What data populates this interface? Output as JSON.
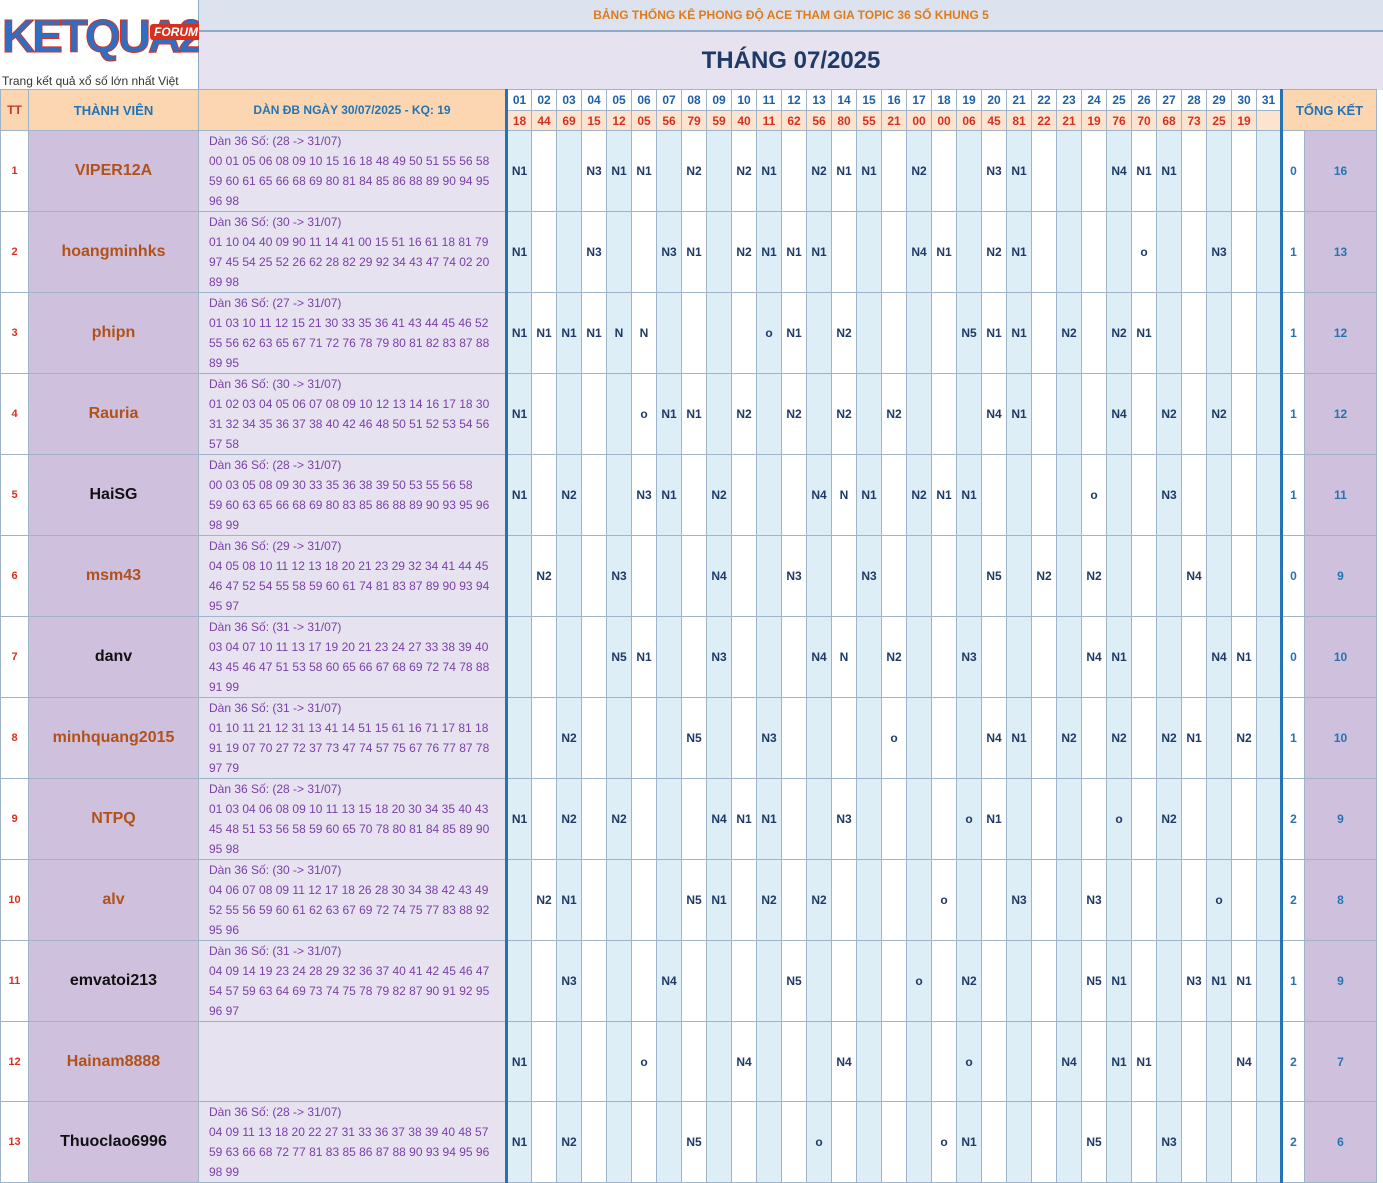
{
  "logo": {
    "text": "KETQUA2",
    "badge": "FORUM",
    "tagline": "Trang kết quả xổ số lớn nhất Việt Nam"
  },
  "title": "BẢNG THỐNG KÊ PHONG ĐỘ ACE THAM GIA TOPIC 36 SỐ KHUNG 5",
  "month": "THÁNG 07/2025",
  "headers": {
    "tt": "TT",
    "member": "THÀNH VIÊN",
    "dan": "DÀN ĐB NGÀY 30/07/2025 - KQ: 19",
    "summary": "TỔNG KẾT"
  },
  "days": [
    "01",
    "02",
    "03",
    "04",
    "05",
    "06",
    "07",
    "08",
    "09",
    "10",
    "11",
    "12",
    "13",
    "14",
    "15",
    "16",
    "17",
    "18",
    "19",
    "20",
    "21",
    "22",
    "23",
    "24",
    "25",
    "26",
    "27",
    "28",
    "29",
    "30",
    "31"
  ],
  "results": [
    "18",
    "44",
    "69",
    "15",
    "12",
    "05",
    "56",
    "79",
    "59",
    "40",
    "11",
    "62",
    "56",
    "80",
    "55",
    "21",
    "00",
    "00",
    "06",
    "45",
    "81",
    "22",
    "21",
    "19",
    "76",
    "70",
    "68",
    "73",
    "25",
    "19",
    ""
  ],
  "rows": [
    {
      "tt": "1",
      "name": "VIPER12A",
      "color": "#b0521a",
      "dan_title": "Dàn 36 Số: (28 -> 31/07)",
      "dan_lines": [
        "00 01 05 06 08 09 10 15 16 18 48 49 50 51 55 56 58",
        "59 60 61 65 66 68 69 80 81 84 85 86 88 89 90 94 95",
        "96 98"
      ],
      "cells": [
        "N1",
        "",
        "",
        "N3",
        "N1",
        "N1",
        "",
        "N2",
        "",
        "N2",
        "N1",
        "",
        "N2",
        "N1",
        "N1",
        "",
        "N2",
        "",
        "",
        "N3",
        "N1",
        "",
        "",
        "",
        "N4",
        "N1",
        "N1",
        "",
        "",
        "",
        ""
      ],
      "s1": "0",
      "s2": "16"
    },
    {
      "tt": "2",
      "name": "hoangminhks",
      "color": "#b0521a",
      "dan_title": "Dàn 36 Số: (30 -> 31/07)",
      "dan_lines": [
        "01 10 04 40 09 90 11 14 41 00 15 51 16 61 18 81 79",
        "97 45 54 25 52 26 62 28 82 29 92 34 43 47 74 02 20",
        "89 98"
      ],
      "cells": [
        "N1",
        "",
        "",
        "N3",
        "",
        "",
        "N3",
        "N1",
        "",
        "N2",
        "N1",
        "N1",
        "N1",
        "",
        "",
        "",
        "N4",
        "N1",
        "",
        "N2",
        "N1",
        "",
        "",
        "",
        "",
        "o",
        "",
        "",
        "N3",
        "",
        ""
      ],
      "s1": "1",
      "s2": "13"
    },
    {
      "tt": "3",
      "name": "phipn",
      "color": "#b0521a",
      "dan_title": "Dàn 36 Số: (27 -> 31/07)",
      "dan_lines": [
        "01 03 10 11 12 15 21 30 33 35 36 41 43 44 45 46 52",
        "55 56 62 63 65 67 71 72 76 78 79 80 81 82 83 87 88",
        "89 95"
      ],
      "cells": [
        "N1",
        "N1",
        "N1",
        "N1",
        "N",
        "N",
        "",
        "",
        "",
        "",
        "o",
        "N1",
        "",
        "N2",
        "",
        "",
        "",
        "",
        "N5",
        "N1",
        "N1",
        "",
        "N2",
        "",
        "N2",
        "N1",
        "",
        "",
        "",
        "",
        ""
      ],
      "s1": "1",
      "s2": "12"
    },
    {
      "tt": "4",
      "name": "Rauria",
      "color": "#b0521a",
      "dan_title": "Dàn 36 Số: (30 -> 31/07)",
      "dan_lines": [
        "01 02 03 04 05 06 07 08 09 10 12 13 14 16 17 18 30",
        "31 32 34 35 36 37 38 40 42 46 48 50 51 52 53 54 56",
        "57 58"
      ],
      "cells": [
        "N1",
        "",
        "",
        "",
        "",
        "o",
        "N1",
        "N1",
        "",
        "N2",
        "",
        "N2",
        "",
        "N2",
        "",
        "N2",
        "",
        "",
        "",
        "N4",
        "N1",
        "",
        "",
        "",
        "N4",
        "",
        "N2",
        "",
        "N2",
        "",
        ""
      ],
      "s1": "1",
      "s2": "12"
    },
    {
      "tt": "5",
      "name": "HaiSG",
      "color": "#111111",
      "dan_title": "Dàn 36 Số: (28 -> 31/07)",
      "dan_lines": [
        "00 03 05 08 09 30 33 35 36 38 39 50 53 55 56 58",
        "59 60 63 65 66 68 69 80 83 85 86 88 89 90 93 95 96",
        "98 99"
      ],
      "cells": [
        "N1",
        "",
        "N2",
        "",
        "",
        "N3",
        "N1",
        "",
        "N2",
        "",
        "",
        "",
        "N4",
        "N",
        "N1",
        "",
        "N2",
        "N1",
        "N1",
        "",
        "",
        "",
        "",
        "o",
        "",
        "",
        "N3",
        "",
        "",
        "",
        ""
      ],
      "s1": "1",
      "s2": "11"
    },
    {
      "tt": "6",
      "name": "msm43",
      "color": "#b0521a",
      "dan_title": "Dàn 36 Số: (29 -> 31/07)",
      "dan_lines": [
        "04 05 08 10 11 12 13 18 20 21 23 29 32 34 41 44 45",
        "46 47 52 54 55 58 59 60 61 74 81 83 87 89 90 93 94",
        "95 97"
      ],
      "cells": [
        "",
        "N2",
        "",
        "",
        "N3",
        "",
        "",
        "",
        "N4",
        "",
        "",
        "N3",
        "",
        "",
        "N3",
        "",
        "",
        "",
        "",
        "N5",
        "",
        "N2",
        "",
        "N2",
        "",
        "",
        "",
        "N4",
        "",
        "",
        ""
      ],
      "s1": "0",
      "s2": "9"
    },
    {
      "tt": "7",
      "name": "danv",
      "color": "#111111",
      "dan_title": "Dàn 36 Số: (31 -> 31/07)",
      "dan_lines": [
        "03 04 07 10 11 13 17 19 20 21 23 24 27 33 38 39 40",
        "43 45 46 47 51 53 58 60 65 66 67 68 69 72 74 78 88",
        "91 99"
      ],
      "cells": [
        "",
        "",
        "",
        "",
        "N5",
        "N1",
        "",
        "",
        "N3",
        "",
        "",
        "",
        "N4",
        "N",
        "",
        "N2",
        "",
        "",
        "N3",
        "",
        "",
        "",
        "",
        "N4",
        "N1",
        "",
        "",
        "",
        "N4",
        "N1",
        ""
      ],
      "s1": "0",
      "s2": "10"
    },
    {
      "tt": "8",
      "name": "minhquang2015",
      "color": "#b0521a",
      "dan_title": "Dàn 36 Số: (31 -> 31/07)",
      "dan_lines": [
        "01 10 11 21 12 31 13 41 14 51 15 61 16 71 17 81 18",
        "91 19 07 70 27 72 37 73 47 74 57 75 67 76 77 87 78",
        "97 79"
      ],
      "cells": [
        "",
        "",
        "N2",
        "",
        "",
        "",
        "",
        "N5",
        "",
        "",
        "N3",
        "",
        "",
        "",
        "",
        "o",
        "",
        "",
        "",
        "N4",
        "N1",
        "",
        "N2",
        "",
        "N2",
        "",
        "N2",
        "N1",
        "",
        "N2",
        ""
      ],
      "s1": "1",
      "s2": "10"
    },
    {
      "tt": "9",
      "name": "NTPQ",
      "color": "#b0521a",
      "dan_title": "Dàn 36 Số: (28 -> 31/07)",
      "dan_lines": [
        "01 03 04 06 08 09 10 11 13 15 18 20 30 34 35 40 43",
        "45 48 51 53 56 58 59 60 65 70 78 80 81 84 85 89 90",
        "95 98"
      ],
      "cells": [
        "N1",
        "",
        "N2",
        "",
        "N2",
        "",
        "",
        "",
        "N4",
        "N1",
        "N1",
        "",
        "",
        "N3",
        "",
        "",
        "",
        "",
        "o",
        "N1",
        "",
        "",
        "",
        "",
        "o",
        "",
        "N2",
        "",
        "",
        "",
        ""
      ],
      "s1": "2",
      "s2": "9"
    },
    {
      "tt": "10",
      "name": "alv",
      "color": "#b0521a",
      "dan_title": "Dàn 36 Số: (30 -> 31/07)",
      "dan_lines": [
        "04 06 07 08 09 11 12 17 18 26 28 30 34 38 42 43 49",
        "52 55 56 59 60 61 62 63 67 69 72 74 75 77 83 88 92",
        "95 96"
      ],
      "cells": [
        "",
        "N2",
        "N1",
        "",
        "",
        "",
        "",
        "N5",
        "N1",
        "",
        "N2",
        "",
        "N2",
        "",
        "",
        "",
        "",
        "o",
        "",
        "",
        "N3",
        "",
        "",
        "N3",
        "",
        "",
        "",
        "",
        "o",
        "",
        ""
      ],
      "s1": "2",
      "s2": "8"
    },
    {
      "tt": "11",
      "name": "emvatoi213",
      "color": "#111111",
      "dan_title": "Dàn 36 Số: (31 -> 31/07)",
      "dan_lines": [
        "04 09 14 19 23 24 28 29 32 36 37 40 41 42 45 46 47",
        "54 57 59 63 64 69 73 74 75 78 79 82 87 90 91 92 95",
        "96 97"
      ],
      "cells": [
        "",
        "",
        "N3",
        "",
        "",
        "",
        "N4",
        "",
        "",
        "",
        "",
        "N5",
        "",
        "",
        "",
        "",
        "o",
        "",
        "N2",
        "",
        "",
        "",
        "",
        "N5",
        "N1",
        "",
        "",
        "N3",
        "N1",
        "N1",
        ""
      ],
      "s1": "1",
      "s2": "9"
    },
    {
      "tt": "12",
      "name": "Hainam8888",
      "color": "#b0521a",
      "dan_title": "",
      "dan_lines": [],
      "cells": [
        "N1",
        "",
        "",
        "",
        "",
        "o",
        "",
        "",
        "",
        "N4",
        "",
        "",
        "",
        "N4",
        "",
        "",
        "",
        "",
        "o",
        "",
        "",
        "",
        "N4",
        "",
        "N1",
        "N1",
        "",
        "",
        "",
        "N4",
        ""
      ],
      "s1": "2",
      "s2": "7"
    },
    {
      "tt": "13",
      "name": "Thuoclao6996",
      "color": "#111111",
      "dan_title": "Dàn 36 Số: (28 -> 31/07)",
      "dan_lines": [
        "04 09 11 13 18 20 22 27 31 33 36 37 38 39 40 48 57",
        "59 63 66 68 72 77 81 83 85 86 87 88 90 93 94 95 96",
        "98 99"
      ],
      "cells": [
        "N1",
        "",
        "N2",
        "",
        "",
        "",
        "",
        "N5",
        "",
        "",
        "",
        "",
        "o",
        "",
        "",
        "",
        "",
        "o",
        "N1",
        "",
        "",
        "",
        "",
        "N5",
        "",
        "",
        "N3",
        "",
        "",
        "",
        ""
      ],
      "s1": "2",
      "s2": "6"
    }
  ]
}
